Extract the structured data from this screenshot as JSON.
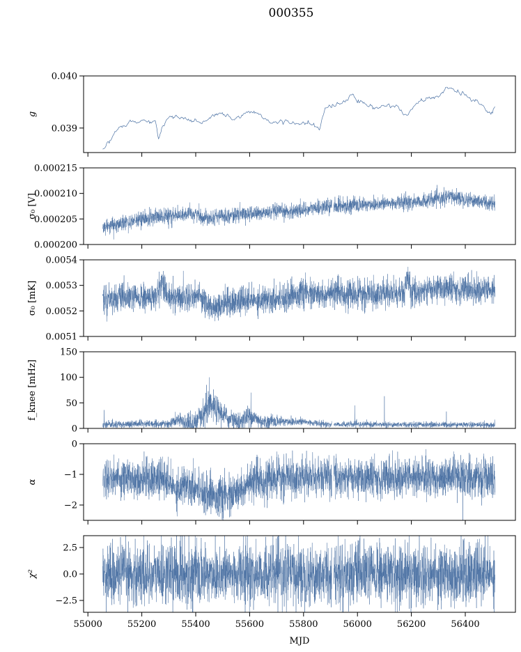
{
  "title": "000355",
  "chart_data": {
    "type": "line",
    "title": "000355",
    "xlabel": "MJD",
    "xlim": [
      54984,
      56586
    ],
    "xticks": [
      55000,
      55200,
      55400,
      55600,
      55800,
      56000,
      56200,
      56400
    ],
    "line_color": "#4c72a4",
    "data_range": [
      55055,
      56510
    ],
    "panels": [
      {
        "name": "g",
        "ylabel": "g",
        "ylim": [
          0.03853,
          0.04
        ],
        "yticks": [
          0.039,
          0.04
        ],
        "ytick_labels": [
          "0.039",
          "0.040"
        ],
        "trend": [
          [
            55055,
            0.03862
          ],
          [
            55080,
            0.03875
          ],
          [
            55110,
            0.039
          ],
          [
            55150,
            0.0391
          ],
          [
            55250,
            0.03915
          ],
          [
            55262,
            0.0388
          ],
          [
            55275,
            0.039
          ],
          [
            55300,
            0.0392
          ],
          [
            55350,
            0.0392
          ],
          [
            55420,
            0.0391
          ],
          [
            55480,
            0.03925
          ],
          [
            55550,
            0.0392
          ],
          [
            55600,
            0.0393
          ],
          [
            55650,
            0.0392
          ],
          [
            55700,
            0.0391
          ],
          [
            55800,
            0.0391
          ],
          [
            55860,
            0.039
          ],
          [
            55880,
            0.0394
          ],
          [
            55950,
            0.0395
          ],
          [
            55980,
            0.0396
          ],
          [
            56050,
            0.0394
          ],
          [
            56150,
            0.0394
          ],
          [
            56185,
            0.0392
          ],
          [
            56220,
            0.0395
          ],
          [
            56300,
            0.0396
          ],
          [
            56345,
            0.0398
          ],
          [
            56400,
            0.0396
          ],
          [
            56450,
            0.0395
          ],
          [
            56495,
            0.0393
          ],
          [
            56510,
            0.03945
          ]
        ],
        "noise": [
          [
            55055,
            4e-05
          ],
          [
            56510,
            4e-05
          ]
        ],
        "step": 3,
        "gaps": []
      },
      {
        "name": "sigma0_V",
        "ylabel": "σ₀ [V]",
        "ylim": [
          0.0002,
          0.000215
        ],
        "yticks": [
          0.0002,
          0.000205,
          0.00021,
          0.000215
        ],
        "ytick_labels": [
          "0.000200",
          "0.000205",
          "0.000210",
          "0.000215"
        ],
        "trend": [
          [
            55055,
            0.0002032
          ],
          [
            55200,
            0.000205
          ],
          [
            55400,
            0.000206
          ],
          [
            55425,
            0.0002053
          ],
          [
            55600,
            0.000206
          ],
          [
            55750,
            0.0002065
          ],
          [
            55900,
            0.0002075
          ],
          [
            56100,
            0.000208
          ],
          [
            56250,
            0.0002085
          ],
          [
            56350,
            0.0002094
          ],
          [
            56510,
            0.000208
          ]
        ],
        "noise": [
          [
            55055,
            8e-07
          ],
          [
            56510,
            8e-07
          ]
        ],
        "step": 0.5,
        "gaps": [
          [
            55905,
            55912
          ]
        ]
      },
      {
        "name": "sigma0_mK",
        "ylabel": "σ₀ [mK]",
        "ylim": [
          0.0051,
          0.0054
        ],
        "yticks": [
          0.0051,
          0.0052,
          0.0053,
          0.0054
        ],
        "ytick_labels": [
          "0.0051",
          "0.0052",
          "0.0053",
          "0.0054"
        ],
        "trend": [
          [
            55055,
            0.00525
          ],
          [
            55250,
            0.00525
          ],
          [
            55275,
            0.00532
          ],
          [
            55300,
            0.00525
          ],
          [
            55420,
            0.00526
          ],
          [
            55450,
            0.00521
          ],
          [
            55500,
            0.00523
          ],
          [
            55700,
            0.00525
          ],
          [
            55800,
            0.00527
          ],
          [
            55850,
            0.00526
          ],
          [
            55950,
            0.00527
          ],
          [
            56000,
            0.00526
          ],
          [
            56100,
            0.00527
          ],
          [
            56175,
            0.00527
          ],
          [
            56185,
            0.00533
          ],
          [
            56200,
            0.00527
          ],
          [
            56300,
            0.00529
          ],
          [
            56510,
            0.00528
          ]
        ],
        "noise": [
          [
            55055,
            3e-05
          ],
          [
            56510,
            3e-05
          ]
        ],
        "step": 0.5,
        "gaps": []
      },
      {
        "name": "fknee",
        "ylabel": "f_knee [mHz]",
        "ylim": [
          0,
          150
        ],
        "yticks": [
          0,
          50,
          100,
          150
        ],
        "ytick_labels": [
          "0",
          "50",
          "100",
          "150"
        ],
        "trend": [
          [
            55055,
            8
          ],
          [
            55300,
            9
          ],
          [
            55330,
            16
          ],
          [
            55380,
            10
          ],
          [
            55420,
            12
          ],
          [
            55440,
            40
          ],
          [
            55470,
            40
          ],
          [
            55520,
            20
          ],
          [
            55560,
            12
          ],
          [
            55600,
            25
          ],
          [
            55650,
            12
          ],
          [
            55700,
            14
          ],
          [
            55800,
            13
          ],
          [
            55880,
            8
          ],
          [
            56510,
            7
          ]
        ],
        "noise": [
          [
            55055,
            4
          ],
          [
            55300,
            4
          ],
          [
            55440,
            18
          ],
          [
            55500,
            12
          ],
          [
            55600,
            10
          ],
          [
            55700,
            6
          ],
          [
            55880,
            3
          ],
          [
            56510,
            3
          ]
        ],
        "step": 0.5,
        "gaps": [
          [
            55905,
            55912
          ]
        ],
        "spikes": [
          [
            55060,
            36
          ],
          [
            55450,
            100
          ],
          [
            55605,
            70
          ],
          [
            55990,
            45
          ],
          [
            56100,
            63
          ],
          [
            56330,
            33
          ]
        ]
      },
      {
        "name": "alpha",
        "ylabel": "α",
        "ylim": [
          -2.5,
          0
        ],
        "yticks": [
          -2,
          -1,
          0
        ],
        "ytick_labels": [
          "−2",
          "−1",
          "0"
        ],
        "trend": [
          [
            55055,
            -1.1
          ],
          [
            55280,
            -1.15
          ],
          [
            55330,
            -1.5
          ],
          [
            55360,
            -1.3
          ],
          [
            55400,
            -1.4
          ],
          [
            55440,
            -1.6
          ],
          [
            55500,
            -1.75
          ],
          [
            55540,
            -1.7
          ],
          [
            55580,
            -1.4
          ],
          [
            55640,
            -1.2
          ],
          [
            55750,
            -1.1
          ],
          [
            56510,
            -1.1
          ]
        ],
        "noise": [
          [
            55055,
            0.35
          ],
          [
            56510,
            0.35
          ]
        ],
        "step": 0.5,
        "gaps": [
          [
            55905,
            55912
          ]
        ]
      },
      {
        "name": "chi2",
        "ylabel": "χ²",
        "ylim": [
          -3.62,
          3.62
        ],
        "yticks": [
          -2.5,
          0,
          2.5
        ],
        "ytick_labels": [
          "−2.5",
          "0.0",
          "2.5"
        ],
        "trend": [
          [
            55055,
            0
          ],
          [
            56510,
            0
          ]
        ],
        "noise": [
          [
            55055,
            1.6
          ],
          [
            56510,
            1.6
          ]
        ],
        "step": 0.5,
        "gaps": [
          [
            55905,
            55912
          ]
        ]
      }
    ]
  }
}
